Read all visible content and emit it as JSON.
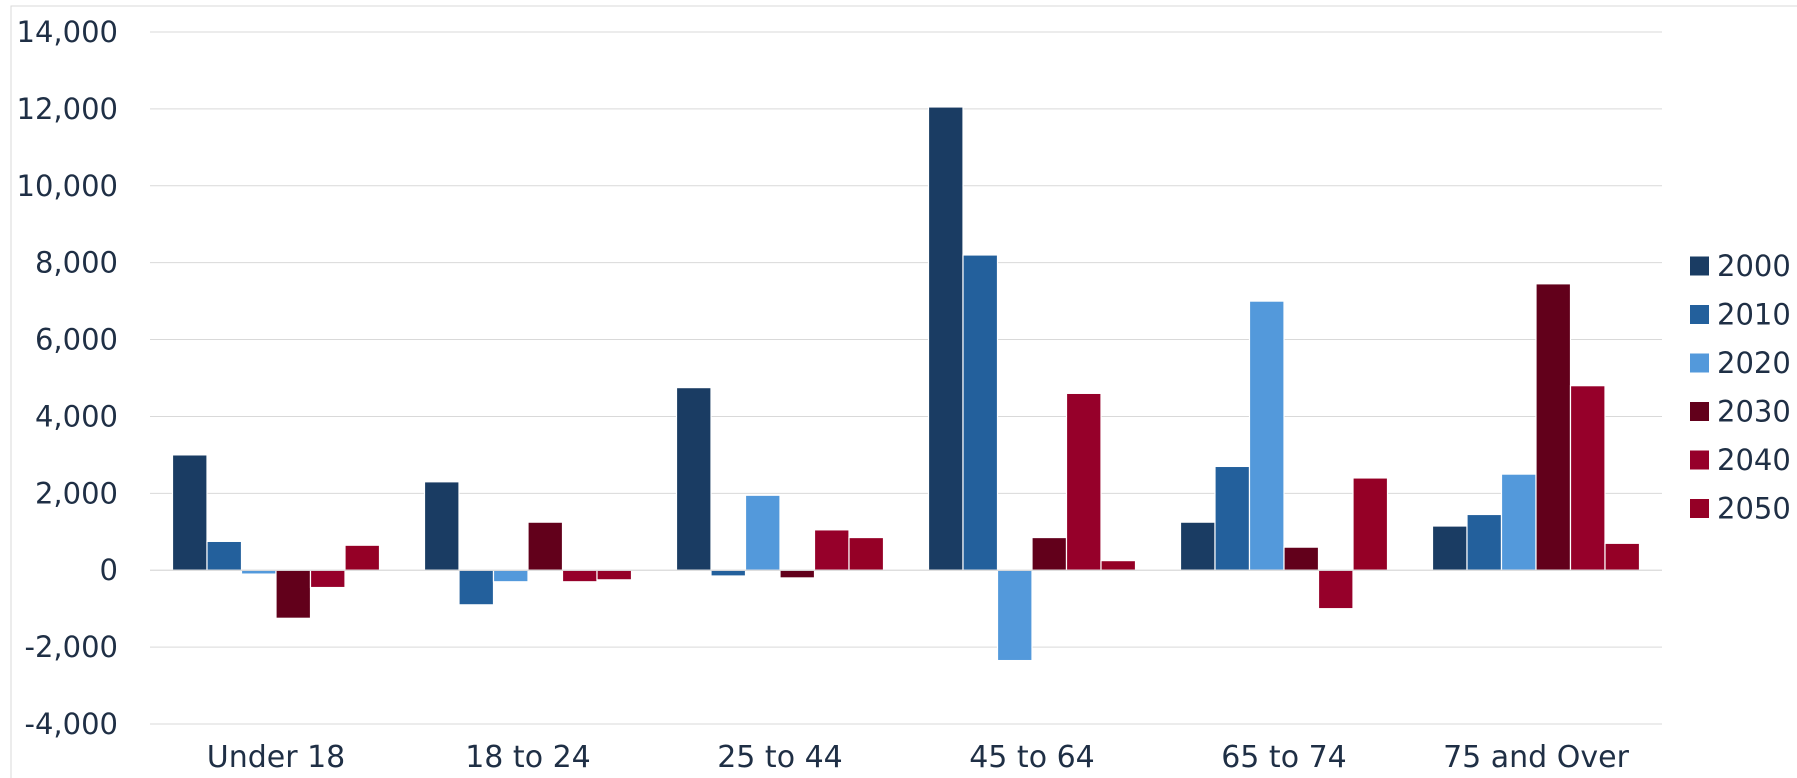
{
  "chart_data": {
    "type": "bar",
    "categories": [
      "Under 18",
      "18 to 24",
      "25 to 44",
      "45 to 64",
      "65 to 74",
      "75 and Over"
    ],
    "series": [
      {
        "name": "2000",
        "color": "#1a3c63",
        "values": [
          3000,
          2300,
          4750,
          12050,
          1250,
          1150
        ]
      },
      {
        "name": "2010",
        "color": "#23609c",
        "values": [
          750,
          -900,
          -150,
          8200,
          2700,
          1450
        ]
      },
      {
        "name": "2020",
        "color": "#5399db",
        "values": [
          -100,
          -300,
          1950,
          -2350,
          7000,
          2500
        ]
      },
      {
        "name": "2030",
        "color": "#62001b",
        "values": [
          -1250,
          1250,
          -200,
          850,
          600,
          7450
        ]
      },
      {
        "name": "2040",
        "color": "#96002a",
        "values": [
          -450,
          -300,
          1050,
          4600,
          -1000,
          4800
        ]
      },
      {
        "name": "2050",
        "color": "#950026",
        "values": [
          650,
          -250,
          850,
          250,
          2400,
          700
        ]
      }
    ],
    "ylim": [
      -4000,
      14000
    ],
    "yticks": [
      -4000,
      -2000,
      0,
      2000,
      4000,
      6000,
      8000,
      10000,
      12000,
      14000
    ],
    "ytick_labels": [
      "-4,000",
      "-2,000",
      "0",
      "2,000",
      "4,000",
      "6,000",
      "8,000",
      "10,000",
      "12,000",
      "14,000"
    ],
    "grid": true,
    "legend_position": "right",
    "title": "",
    "xlabel": "",
    "ylabel": ""
  }
}
